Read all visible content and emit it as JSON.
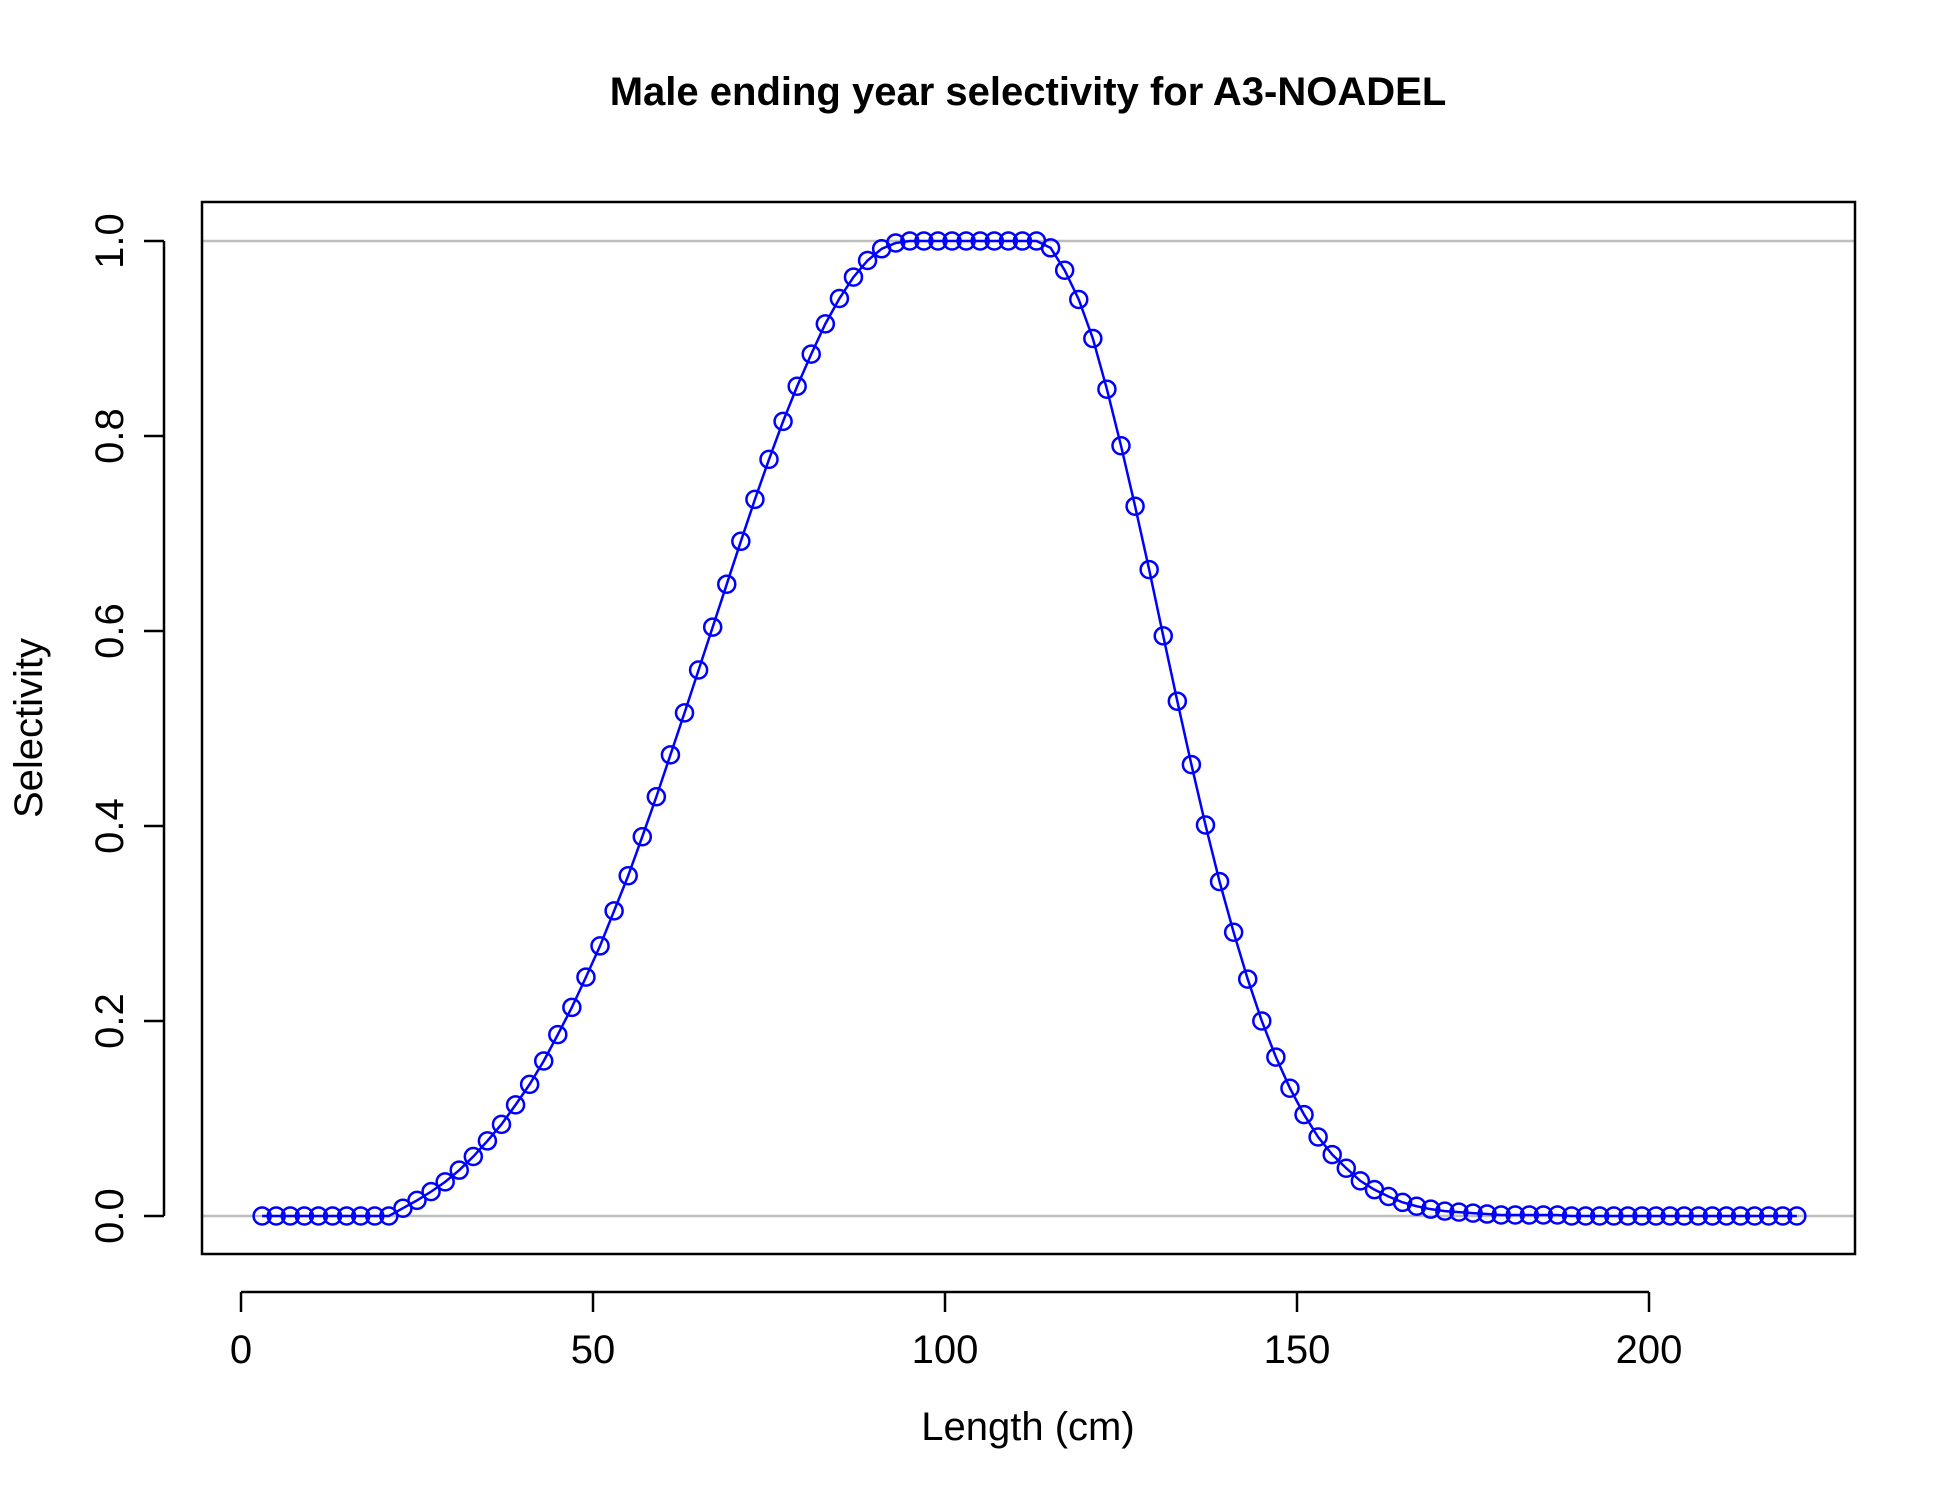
{
  "chart_data": {
    "type": "line",
    "title": "Male ending year selectivity for A3-NOADEL",
    "xlabel": "Length (cm)",
    "ylabel": "Selectivity",
    "xlim": [
      0,
      230
    ],
    "ylim": [
      0,
      1.0
    ],
    "x_ticks": [
      0,
      50,
      100,
      150,
      200
    ],
    "y_ticks": [
      0.0,
      0.2,
      0.4,
      0.6,
      0.8,
      1.0
    ],
    "x_tick_labels": [
      "0",
      "50",
      "100",
      "150",
      "200"
    ],
    "y_tick_labels": [
      "0.0",
      "0.2",
      "0.4",
      "0.6",
      "0.8",
      "1.0"
    ],
    "reference_lines_y": [
      0,
      1
    ],
    "reference_line_color": "#bebebe",
    "series": [
      {
        "color": "#0000ff",
        "marker": "open-circle",
        "x": [
          3,
          5,
          7,
          9,
          11,
          13,
          15,
          17,
          19,
          21,
          23,
          25,
          27,
          29,
          31,
          33,
          35,
          37,
          39,
          41,
          43,
          45,
          47,
          49,
          51,
          53,
          55,
          57,
          59,
          61,
          63,
          65,
          67,
          69,
          71,
          73,
          75,
          77,
          79,
          81,
          83,
          85,
          87,
          89,
          91,
          93,
          95,
          97,
          99,
          101,
          103,
          105,
          107,
          109,
          111,
          113,
          115,
          117,
          119,
          121,
          123,
          125,
          127,
          129,
          131,
          133,
          135,
          137,
          139,
          141,
          143,
          145,
          147,
          149,
          151,
          153,
          155,
          157,
          159,
          161,
          163,
          165,
          167,
          169,
          171,
          173,
          175,
          177,
          179,
          181,
          183,
          185,
          187,
          189,
          191,
          193,
          195,
          197,
          199,
          201,
          203,
          205,
          207,
          209,
          211,
          213,
          215,
          217,
          219,
          221
        ],
        "y": [
          0,
          0,
          0,
          0,
          0,
          0,
          0,
          0,
          0,
          0,
          0.008,
          0.016,
          0.025,
          0.035,
          0.047,
          0.061,
          0.077,
          0.094,
          0.114,
          0.135,
          0.159,
          0.186,
          0.214,
          0.245,
          0.277,
          0.313,
          0.349,
          0.389,
          0.43,
          0.473,
          0.516,
          0.56,
          0.604,
          0.648,
          0.692,
          0.735,
          0.776,
          0.815,
          0.851,
          0.884,
          0.915,
          0.941,
          0.963,
          0.98,
          0.992,
          0.998,
          1.0,
          1.0,
          1.0,
          1.0,
          1.0,
          1.0,
          1.0,
          1.0,
          1.0,
          1.0,
          0.993,
          0.97,
          0.94,
          0.9,
          0.848,
          0.79,
          0.728,
          0.663,
          0.595,
          0.528,
          0.463,
          0.401,
          0.343,
          0.291,
          0.243,
          0.2,
          0.163,
          0.131,
          0.104,
          0.081,
          0.063,
          0.049,
          0.036,
          0.027,
          0.02,
          0.014,
          0.01,
          0.007,
          0.005,
          0.004,
          0.003,
          0.002,
          0.001,
          0.001,
          0.001,
          0.001,
          0.001,
          0,
          0,
          0,
          0,
          0,
          0,
          0,
          0,
          0,
          0,
          0,
          0,
          0,
          0,
          0,
          0,
          0
        ]
      }
    ]
  }
}
